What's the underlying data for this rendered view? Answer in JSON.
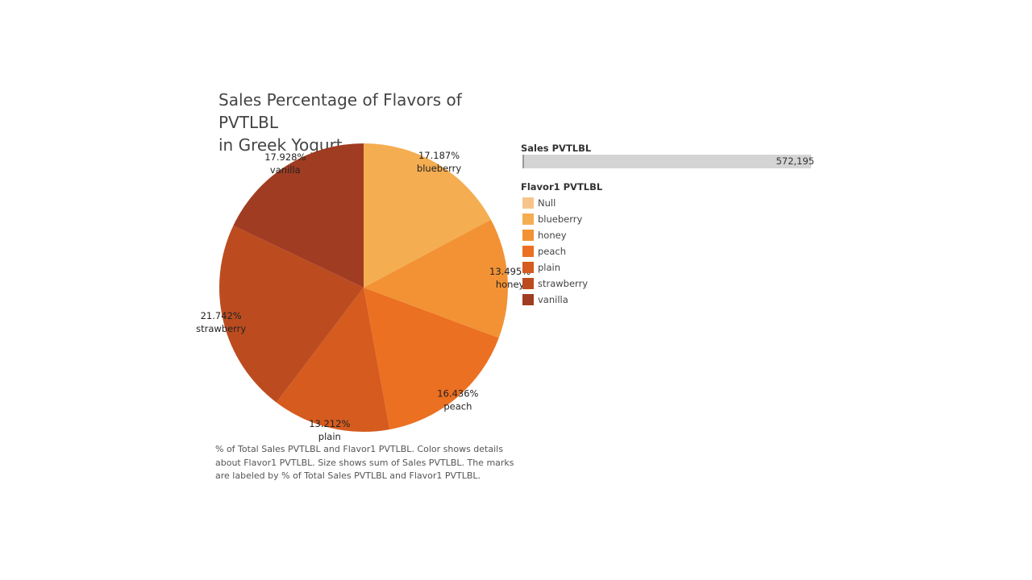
{
  "chart_data": {
    "type": "pie",
    "title_lines": [
      "Sales Percentage of Flavors of PVTLBL",
      "in Greek Yogurt"
    ],
    "slices": [
      {
        "name": "blueberry",
        "percent": 17.187,
        "percent_label": "17.187%",
        "color": "#f5ad52"
      },
      {
        "name": "honey",
        "percent": 13.495,
        "percent_label": "13.495%",
        "color": "#f29234"
      },
      {
        "name": "peach",
        "percent": 16.436,
        "percent_label": "16.436%",
        "color": "#eb7021"
      },
      {
        "name": "plain",
        "percent": 13.212,
        "percent_label": "13.212%",
        "color": "#d55b1f"
      },
      {
        "name": "strawberry",
        "percent": 21.742,
        "percent_label": "21.742%",
        "color": "#bc4c20"
      },
      {
        "name": "vanilla",
        "percent": 17.928,
        "percent_label": "17.928%",
        "color": "#a03c21"
      }
    ],
    "start_angle_deg": 0,
    "direction": "clockwise"
  },
  "size_legend": {
    "title": "Sales PVTLBL",
    "value_label": "572,195"
  },
  "color_legend": {
    "title": "Flavor1 PVTLBL",
    "items": [
      {
        "label": "Null",
        "color": "#f8c48a"
      },
      {
        "label": "blueberry",
        "color": "#f5ad52"
      },
      {
        "label": "honey",
        "color": "#f29234"
      },
      {
        "label": "peach",
        "color": "#eb7021"
      },
      {
        "label": "plain",
        "color": "#d55b1f"
      },
      {
        "label": "strawberry",
        "color": "#bc4c20"
      },
      {
        "label": "vanilla",
        "color": "#a03c21"
      }
    ]
  },
  "caption": "% of Total Sales PVTLBL and Flavor1 PVTLBL.  Color shows details about Flavor1 PVTLBL.  Size shows sum of Sales PVTLBL.  The marks are labeled by % of Total Sales PVTLBL and Flavor1 PVTLBL."
}
